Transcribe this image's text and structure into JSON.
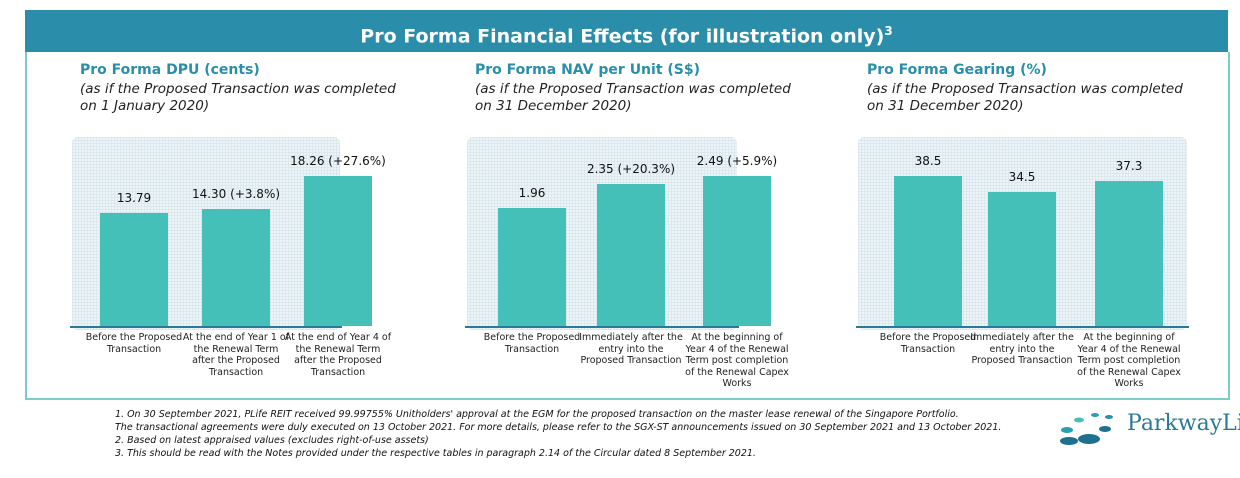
{
  "header": {
    "title": "Pro Forma Financial Effects (for illustration only)",
    "sup": "3"
  },
  "chart_data": [
    {
      "type": "bar",
      "title": "Pro Forma DPU (cents)",
      "subtitle": "(as if the Proposed Transaction was completed on 1 January 2020)",
      "categories": [
        "Before the Proposed Transaction",
        "At the end of Year 1 of the Renewal Term after the Proposed Transaction",
        "At the end of Year 4 of the Renewal Term after the Proposed Transaction"
      ],
      "values": [
        13.79,
        14.3,
        18.26
      ],
      "labels": [
        "13.79",
        "14.30 (+3.8%)",
        "18.26 (+27.6%)"
      ]
    },
    {
      "type": "bar",
      "title": "Pro Forma NAV per Unit (S$)",
      "subtitle": "(as if the Proposed Transaction was completed on 31 December 2020)",
      "categories": [
        "Before the Proposed Transaction",
        "Immediately after the entry into the Proposed Transaction",
        "At the beginning of Year 4 of the Renewal Term post completion of the Renewal Capex Works"
      ],
      "values": [
        1.96,
        2.35,
        2.49
      ],
      "labels": [
        "1.96",
        "2.35 (+20.3%)",
        "2.49 (+5.9%)"
      ]
    },
    {
      "type": "bar",
      "title": "Pro Forma Gearing (%)",
      "subtitle": "(as if the Proposed Transaction was completed on 31 December 2020)",
      "categories": [
        "Before the Proposed Transaction",
        "Immediately after the entry into the Proposed Transaction",
        "At the beginning of Year 4 of the Renewal Term post completion of the Renewal Capex Works"
      ],
      "values": [
        38.5,
        34.5,
        37.3
      ],
      "labels": [
        "38.5",
        "34.5",
        "37.3"
      ]
    }
  ],
  "notes": [
    "1. On 30 September 2021, PLife REIT received 99.99755% Unitholders' approval at the EGM for the proposed transaction on the master lease renewal of the Singapore Portfolio.",
    "The transactional agreements were duly executed on 13 October 2021. For more details, please refer to the SGX-ST announcements issued on 30 September 2021 and 13 October 2021.",
    "2. Based on latest appraised values (excludes right-of-use assets)",
    "3. This should be read with the Notes provided under the respective tables in paragraph 2.14 of the Circular dated 8 September 2021."
  ],
  "logo": {
    "text": "ParkwayLi"
  },
  "colors": {
    "header": "#2a8eaa",
    "bar": "#45c0b9"
  }
}
